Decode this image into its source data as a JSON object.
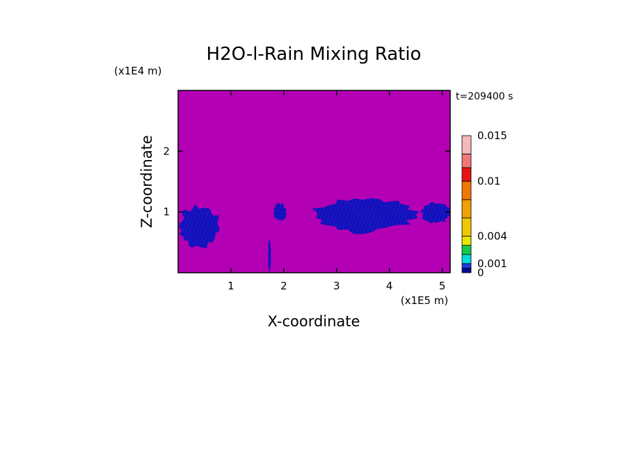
{
  "chart_data": {
    "type": "heatmap",
    "title": "H2O-l-Rain Mixing Ratio",
    "xlabel": "X-coordinate",
    "ylabel": "Z-coordinate",
    "x_scale_label": "(x1E5 m)",
    "y_scale_label": "(x1E4 m)",
    "time_label": "t=209400 s",
    "xlim": [
      0,
      5.15
    ],
    "ylim": [
      0,
      3.0
    ],
    "x_ticks": [
      "1",
      "2",
      "3",
      "4",
      "5"
    ],
    "x_tick_values": [
      1,
      2,
      3,
      4,
      5
    ],
    "y_ticks": [
      "1",
      "2"
    ],
    "y_tick_values": [
      1,
      2
    ],
    "background_color": "#b400b4",
    "data_color": "#0a14be",
    "colorbar": {
      "colors": [
        "#0a0a96",
        "#1e3ce6",
        "#00dcdc",
        "#14c850",
        "#e6e600",
        "#f0c800",
        "#f0a000",
        "#f07800",
        "#e61414",
        "#f07878",
        "#f5b9b9"
      ],
      "boundaries": [
        0,
        0.0005,
        0.001,
        0.002,
        0.003,
        0.004,
        0.006,
        0.008,
        0.01,
        0.0115,
        0.013,
        0.015
      ],
      "tick_labels": [
        "0",
        "0.001",
        "0.004",
        "0.01",
        "0.015"
      ],
      "tick_values": [
        0,
        0.001,
        0.004,
        0.01,
        0.015
      ]
    },
    "rain_regions": [
      {
        "x_range": [
          0.0,
          0.8
        ],
        "z_range": [
          0.4,
          1.1
        ]
      },
      {
        "x_range": [
          1.7,
          1.76
        ],
        "z_range": [
          0.0,
          0.55
        ]
      },
      {
        "x_range": [
          1.8,
          2.05
        ],
        "z_range": [
          0.85,
          1.15
        ]
      },
      {
        "x_range": [
          2.5,
          4.5
        ],
        "z_range": [
          0.65,
          1.25
        ]
      },
      {
        "x_range": [
          4.6,
          5.15
        ],
        "z_range": [
          0.8,
          1.15
        ]
      }
    ]
  }
}
